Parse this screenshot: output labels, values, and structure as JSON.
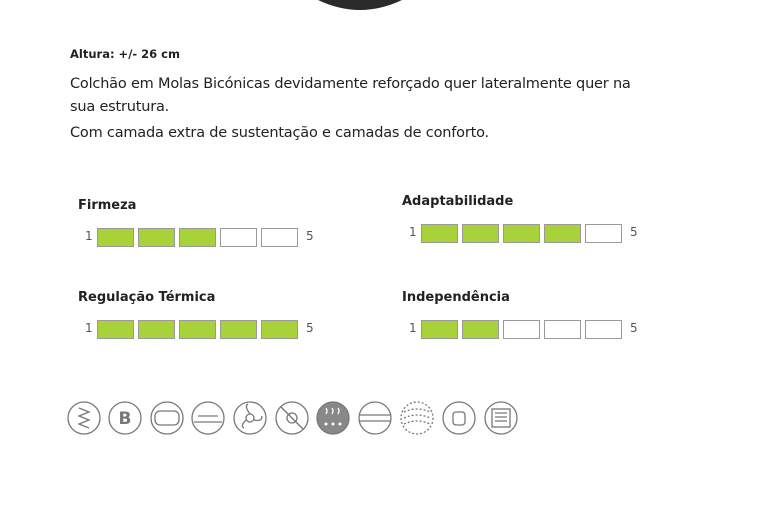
{
  "product": {
    "height": "Altura: +/- 26 cm",
    "description": [
      "Colchão em Molas Bicónicas devidamente reforçado quer lateralmente quer na sua estrutura.",
      "Com camada extra de sustentação e camadas de conforto."
    ]
  },
  "ratings": [
    {
      "label": "Firmeza",
      "min": 1,
      "max": 5,
      "value": 3
    },
    {
      "label": "Adaptabilidade",
      "min": 1,
      "max": 5,
      "value": 4
    },
    {
      "label": "Regulação Térmica",
      "min": 1,
      "max": 5,
      "value": 5
    },
    {
      "label": "Independência",
      "min": 1,
      "max": 5,
      "value": 2
    }
  ]
}
